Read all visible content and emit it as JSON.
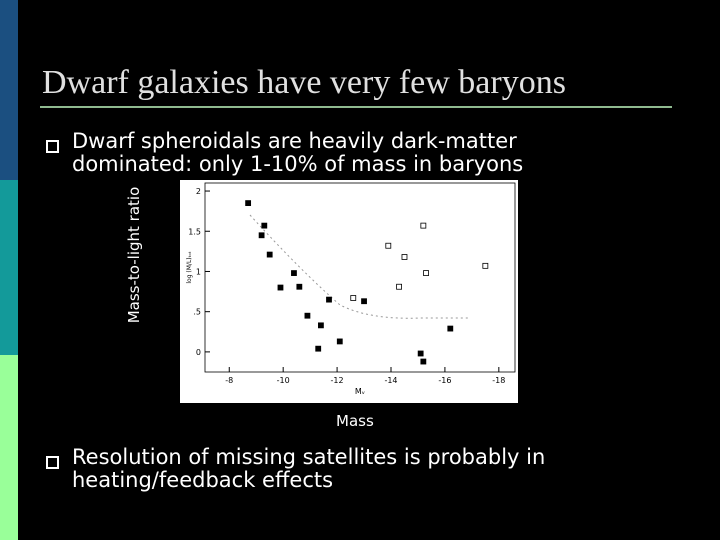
{
  "slide": {
    "title": "Dwarf galaxies have very few baryons",
    "bullets": [
      "Dwarf spheroidals are heavily dark-matter dominated: only 1-10% of mass in baryons",
      "Resolution of missing satellites is probably in heating/feedback effects"
    ],
    "y_side_label": "Mass-to-light ratio",
    "x_side_label": "Mass"
  },
  "chart_data": {
    "type": "scatter",
    "x_label": "Mᵥ",
    "y_label": "log (M/L)ₜₒₜ",
    "xlim": [
      -7.1,
      -18.6
    ],
    "xticks": [
      -8,
      -10,
      -12,
      -14,
      -16,
      -18
    ],
    "ylim": [
      -0.25,
      2.1
    ],
    "yticks": [
      0,
      {
        "value": 0.5,
        "label": ".5"
      },
      1,
      1.5,
      2
    ],
    "series": [
      {
        "name": "filled",
        "color": "#000000",
        "x": [
          -8.7,
          -9.3,
          -9.2,
          -9.5,
          -9.9,
          -10.4,
          -10.6,
          -10.9,
          -11.4,
          -11.3,
          -11.7,
          -12.1,
          -13.0,
          -15.1,
          -15.2,
          -16.2
        ],
        "values": [
          1.85,
          1.57,
          1.45,
          1.21,
          0.8,
          0.98,
          0.81,
          0.45,
          0.33,
          0.04,
          0.65,
          0.13,
          0.63,
          -0.02,
          -0.12,
          0.29
        ]
      },
      {
        "name": "open",
        "color": "#000000",
        "x": [
          -13.9,
          -15.2,
          -14.5,
          -15.3,
          -17.5,
          -12.6,
          -14.3
        ],
        "values": [
          1.32,
          1.57,
          1.18,
          0.98,
          1.07,
          0.67,
          0.81
        ]
      }
    ]
  }
}
